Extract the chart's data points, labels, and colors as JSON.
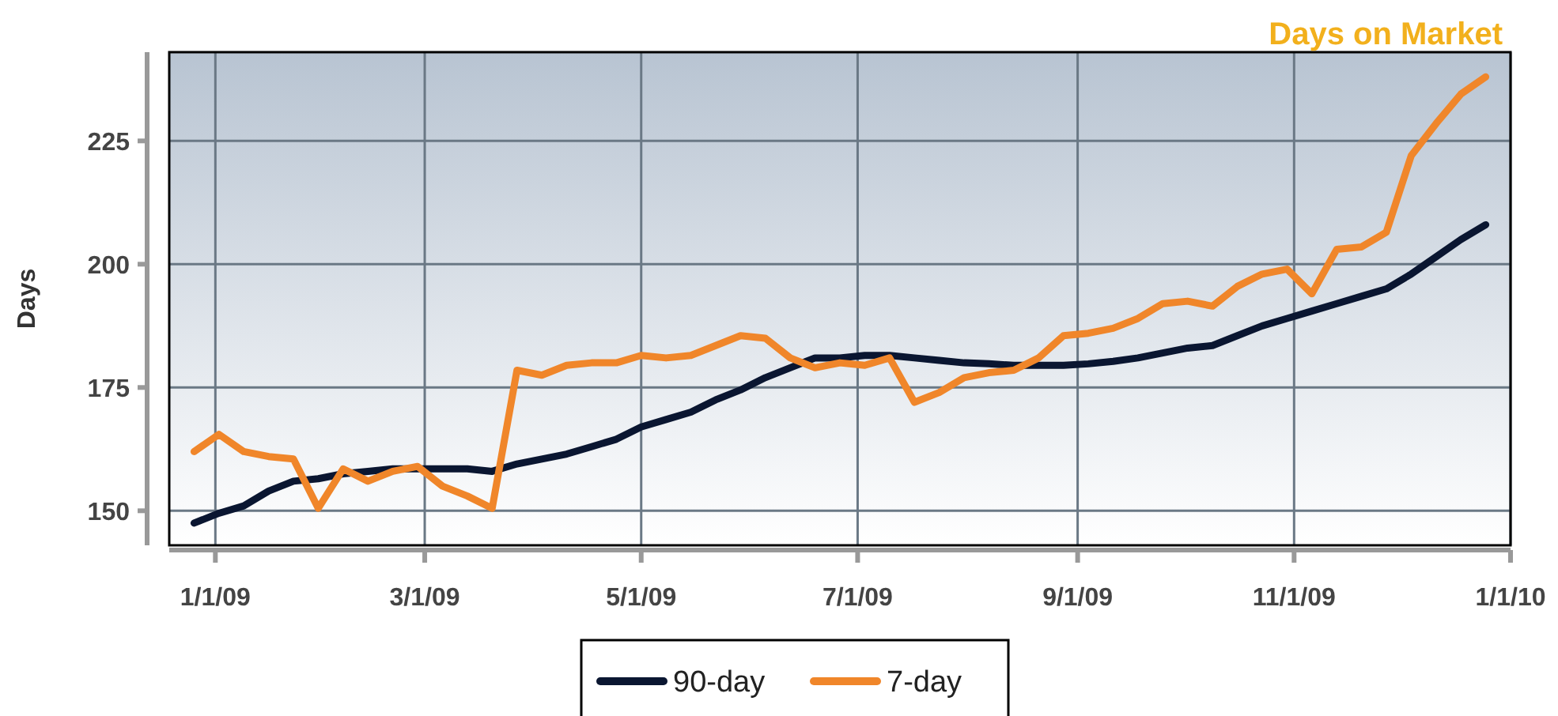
{
  "chart_data": {
    "type": "line",
    "title": "Days on Market",
    "ylabel": "Days",
    "x": [
      "2008-12-26",
      "2009-01-02",
      "2009-01-09",
      "2009-01-16",
      "2009-01-23",
      "2009-01-30",
      "2009-02-06",
      "2009-02-13",
      "2009-02-20",
      "2009-02-27",
      "2009-03-06",
      "2009-03-13",
      "2009-03-20",
      "2009-03-27",
      "2009-04-03",
      "2009-04-10",
      "2009-04-17",
      "2009-04-24",
      "2009-05-01",
      "2009-05-08",
      "2009-05-15",
      "2009-05-22",
      "2009-05-29",
      "2009-06-05",
      "2009-06-12",
      "2009-06-19",
      "2009-06-26",
      "2009-07-03",
      "2009-07-10",
      "2009-07-17",
      "2009-07-24",
      "2009-07-31",
      "2009-08-07",
      "2009-08-14",
      "2009-08-21",
      "2009-08-28",
      "2009-09-04",
      "2009-09-11",
      "2009-09-18",
      "2009-09-25",
      "2009-10-02",
      "2009-10-09",
      "2009-10-16",
      "2009-10-23",
      "2009-10-30",
      "2009-11-06",
      "2009-11-13",
      "2009-11-20",
      "2009-11-27",
      "2009-12-04",
      "2009-12-11",
      "2009-12-18",
      "2009-12-25"
    ],
    "series": [
      {
        "name": "90-day",
        "color": "#0a1631",
        "values": [
          147.5,
          149.5,
          151,
          154,
          156,
          156.5,
          157.5,
          158,
          158.5,
          158.5,
          158.5,
          158.5,
          158,
          159.5,
          160.5,
          161.5,
          163,
          164.5,
          167,
          168.5,
          170,
          172.5,
          174.5,
          177,
          179,
          181,
          181,
          181.5,
          181.5,
          181,
          180.5,
          180,
          179.8,
          179.5,
          179.5,
          179.5,
          179.8,
          180.3,
          181,
          182,
          183,
          183.5,
          185.5,
          187.5,
          189,
          190.5,
          192,
          193.5,
          195,
          198,
          201.5,
          205,
          208
        ]
      },
      {
        "name": "7-day",
        "color": "#f0862a",
        "values": [
          162,
          165.5,
          162,
          161,
          160.5,
          150.5,
          158.5,
          156,
          158,
          159,
          155,
          153,
          150.5,
          178.5,
          177.5,
          179.5,
          180,
          180,
          181.5,
          181,
          181.5,
          183.5,
          185.5,
          185,
          181,
          179,
          180,
          179.5,
          181,
          172,
          174,
          177,
          178,
          178.5,
          181,
          185.5,
          186,
          187,
          189,
          192,
          192.5,
          191.5,
          195.5,
          198,
          199,
          194,
          203,
          203.5,
          206.5,
          222,
          228.5,
          234.5,
          238
        ]
      }
    ],
    "xlim": [
      "2008-12-19",
      "2010-01-01"
    ],
    "xticks": [
      {
        "value": "2009-01-01",
        "label": "1/1/09"
      },
      {
        "value": "2009-03-01",
        "label": "3/1/09"
      },
      {
        "value": "2009-05-01",
        "label": "5/1/09"
      },
      {
        "value": "2009-07-01",
        "label": "7/1/09"
      },
      {
        "value": "2009-09-01",
        "label": "9/1/09"
      },
      {
        "value": "2009-11-01",
        "label": "11/1/09"
      },
      {
        "value": "2010-01-01",
        "label": "1/1/10"
      }
    ],
    "ylim": [
      143,
      243
    ],
    "yticks": [
      150,
      175,
      200,
      225
    ],
    "grid": true,
    "legend": "bottom",
    "marker": "none",
    "line_style": "solid"
  }
}
